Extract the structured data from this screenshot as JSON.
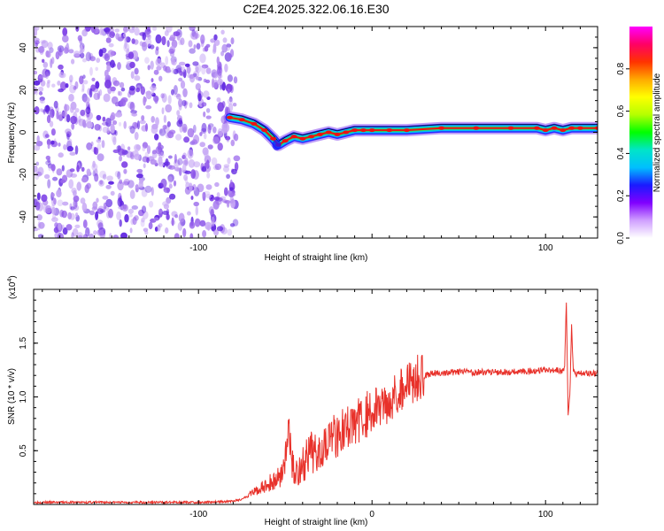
{
  "figure": {
    "title": "C2E4.2025.322.06.16.E30"
  },
  "colors": {
    "snr_line": "#e8312a",
    "spectrogram_ridge": "#ee1111",
    "speckle_dark": "#5a1ee0",
    "speckle_light": "#c7a8f5",
    "frame": "#000000"
  },
  "chart_data": [
    {
      "type": "heatmap",
      "name": "spectrogram",
      "title": "C2E4.2025.322.06.16.E30",
      "xlabel": "Height of straight line (km)",
      "ylabel": "Frequency (Hz)",
      "xlim": [
        -195,
        130
      ],
      "ylim": [
        -50,
        50
      ],
      "xticks": [
        -100,
        0,
        100
      ],
      "xtick_labels": [
        "-100",
        "",
        "100"
      ],
      "yticks": [
        -40,
        -20,
        0,
        20,
        40
      ],
      "ytick_labels": [
        "-40",
        "-20",
        "0",
        "20",
        "40"
      ],
      "noise_region_x": [
        -195,
        -82
      ],
      "ridge": {
        "x": [
          -82,
          -75,
          -68,
          -62,
          -57,
          -54,
          -50,
          -45,
          -40,
          -35,
          -30,
          -25,
          -20,
          -15,
          -10,
          -5,
          0,
          10,
          20,
          40,
          60,
          80,
          95,
          100,
          105,
          110,
          115,
          120,
          130
        ],
        "y": [
          7,
          6,
          4,
          1,
          -3,
          -6,
          -4,
          -2,
          -3,
          -2,
          -1,
          0,
          -1,
          0,
          1,
          1,
          1,
          1,
          1,
          2,
          2,
          2,
          2,
          1,
          2,
          1,
          2,
          2,
          2
        ]
      },
      "colorbar": {
        "label": "Normalized spectral amplitude",
        "range": [
          0,
          1
        ],
        "ticks": [
          0.0,
          0.2,
          0.4,
          0.6,
          0.8
        ],
        "tick_labels": [
          "0.0",
          "0.2",
          "0.4",
          "0.6",
          "0.8"
        ],
        "colormap": [
          "#ffffff",
          "#d0a0ff",
          "#8000ff",
          "#1a1aff",
          "#00bfff",
          "#00e5c8",
          "#00ff00",
          "#b5ff00",
          "#ffff00",
          "#ffaa00",
          "#ff3300",
          "#ff0066",
          "#ff00ff"
        ]
      }
    },
    {
      "type": "line",
      "name": "snr",
      "xlabel": "Height of straight line (km)",
      "ylabel": "SNR (10 * v/v)",
      "y_multiplier": "(x10",
      "y_multiplier_exp": "4",
      "y_multiplier_close": ")",
      "xlim": [
        -195,
        130
      ],
      "ylim": [
        0,
        2.0
      ],
      "xticks": [
        -100,
        0,
        100
      ],
      "xtick_labels": [
        "-100",
        "0",
        "100"
      ],
      "yticks": [
        0.5,
        1.0,
        1.5
      ],
      "ytick_labels": [
        "0.5",
        "1.0",
        "1.5"
      ],
      "series": [
        {
          "name": "SNR",
          "x": [
            -195,
            -150,
            -100,
            -80,
            -75,
            -70,
            -65,
            -60,
            -55,
            -52,
            -49,
            -48,
            -46,
            -44,
            -40,
            -35,
            -30,
            -25,
            -20,
            -15,
            -10,
            -5,
            0,
            5,
            10,
            15,
            20,
            25,
            30,
            35,
            40,
            50,
            60,
            70,
            80,
            90,
            100,
            105,
            110,
            111,
            112,
            113,
            114,
            115,
            116,
            117,
            118,
            120,
            125,
            130
          ],
          "y": [
            0.02,
            0.02,
            0.02,
            0.03,
            0.05,
            0.1,
            0.14,
            0.18,
            0.24,
            0.3,
            0.5,
            0.75,
            0.35,
            0.3,
            0.36,
            0.46,
            0.55,
            0.62,
            0.66,
            0.7,
            0.76,
            0.82,
            0.86,
            0.92,
            0.98,
            1.05,
            1.12,
            1.17,
            1.2,
            1.22,
            1.22,
            1.23,
            1.23,
            1.23,
            1.23,
            1.24,
            1.25,
            1.25,
            1.24,
            1.3,
            1.9,
            0.8,
            1.0,
            1.65,
            1.25,
            1.22,
            1.21,
            1.22,
            1.22,
            1.22
          ]
        }
      ]
    }
  ]
}
